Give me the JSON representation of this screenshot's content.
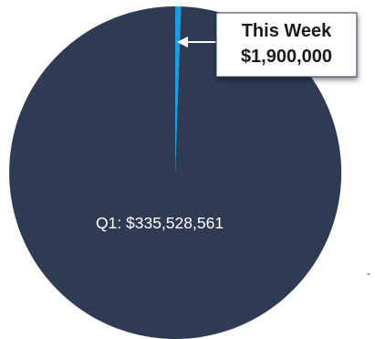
{
  "chart_data": {
    "type": "pie",
    "slices": [
      {
        "label": "Q1: $335,528,561",
        "value": 335528561,
        "color": "#2e3b52"
      },
      {
        "label": "This Week $1,900,000",
        "value": 1900000,
        "color": "#1f9be0"
      }
    ],
    "callout": {
      "line1": "This Week",
      "line2": "$1,900,000"
    },
    "stray_mark": "-",
    "legend": "none",
    "title": ""
  }
}
